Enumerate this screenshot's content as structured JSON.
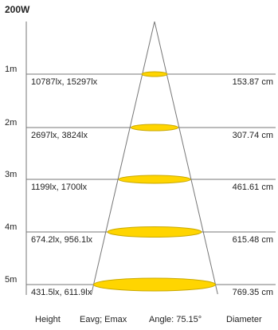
{
  "title": "200W",
  "angle": 75.15,
  "colors": {
    "ellipse_fill": "#ffd500",
    "ellipse_stroke": "#c9a800",
    "line": "#777777",
    "background": "#ffffff"
  },
  "rows": [
    {
      "height": "1m",
      "illuminance": "10787lx, 15297lx",
      "diameter": "153.87 cm"
    },
    {
      "height": "2m",
      "illuminance": "2697lx, 3824lx",
      "diameter": "307.74 cm"
    },
    {
      "height": "3m",
      "illuminance": "1199lx, 1700lx",
      "diameter": "461.61 cm"
    },
    {
      "height": "4m",
      "illuminance": "674.2lx, 956.1lx",
      "diameter": "615.48 cm"
    },
    {
      "height": "5m",
      "illuminance": "431.5lx, 611.9lx",
      "diameter": "769.35 cm"
    }
  ],
  "footer": {
    "height_label": "Height",
    "eavg_label": "Eavg; Emax",
    "angle_label": "Angle: 75.15°",
    "diameter_label": "Diameter"
  }
}
